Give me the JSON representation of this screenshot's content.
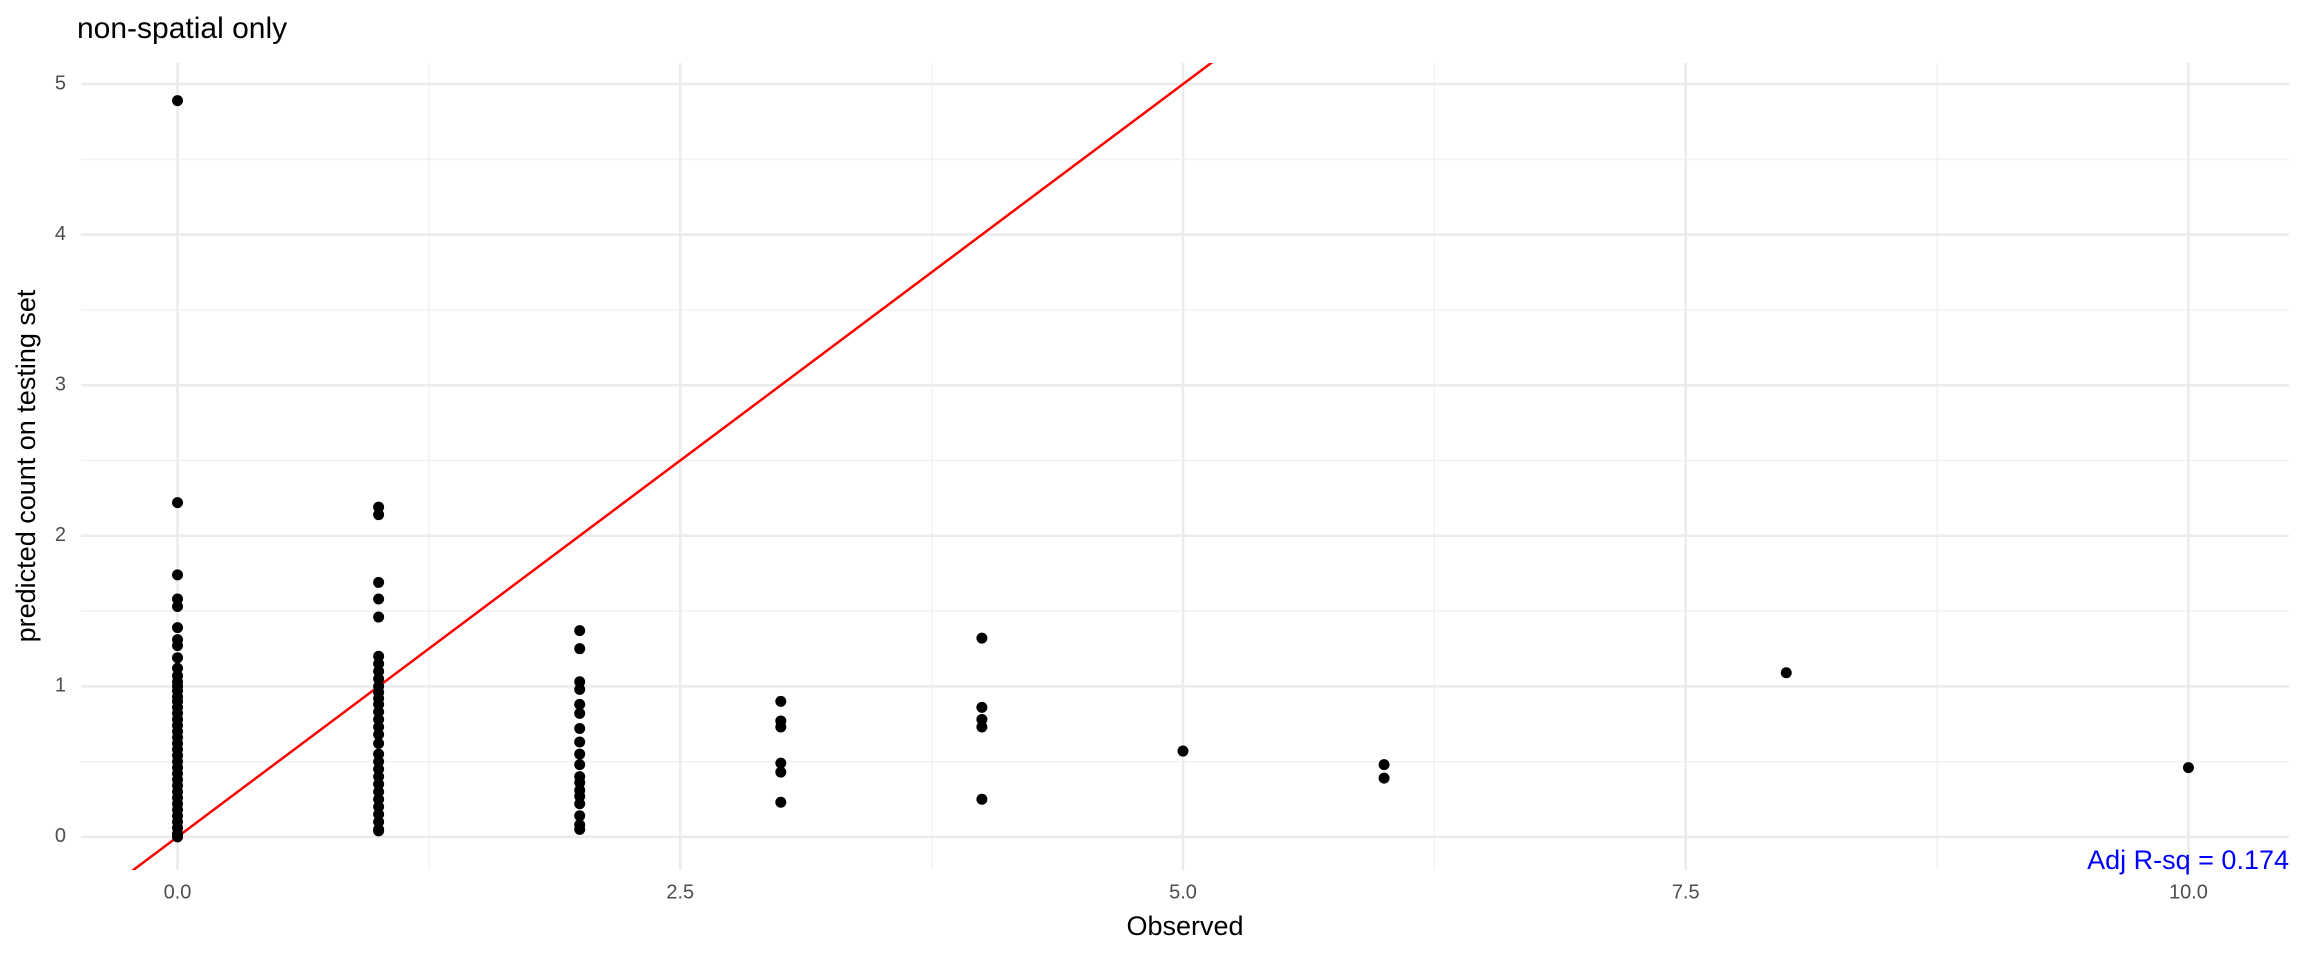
{
  "chart_data": {
    "type": "scatter",
    "title": "non-spatial only",
    "x_label": "Observed",
    "y_label": "predicted count on testing set",
    "annotation": "Adj R-sq = 0.174",
    "annotation_color": "#0000ff",
    "color": "#000000",
    "identity_line": true,
    "identity_line_color": "#ff0000",
    "grid": true,
    "xlim": [
      -0.48,
      10.5
    ],
    "ylim": [
      -0.22,
      5.14
    ],
    "xticks": [
      {
        "value": 0,
        "label": "0.0"
      },
      {
        "value": 2.5,
        "label": "2.5"
      },
      {
        "value": 5,
        "label": "5.0"
      },
      {
        "value": 7.5,
        "label": "7.5"
      },
      {
        "value": 10,
        "label": "10.0"
      }
    ],
    "yticks": [
      0,
      1,
      2,
      3,
      4,
      5
    ],
    "x": [
      0,
      0,
      0,
      0,
      0,
      0,
      0,
      0,
      0,
      0,
      0,
      0,
      0,
      0,
      0,
      0,
      0,
      0,
      0,
      0,
      0,
      0,
      0,
      0,
      0,
      0,
      0,
      0,
      0,
      0,
      0,
      0,
      0,
      0,
      0,
      0,
      0,
      0,
      0,
      1,
      1,
      1,
      1,
      1,
      1,
      1,
      1,
      1,
      1,
      1,
      1,
      1,
      1,
      1,
      1,
      1,
      1,
      1,
      1,
      1,
      1,
      1,
      1,
      1,
      1,
      1,
      1,
      1,
      1,
      2,
      2,
      2,
      2,
      2,
      2,
      2,
      2,
      2,
      2,
      2,
      2,
      2,
      2,
      2,
      2,
      2,
      2,
      3,
      3,
      3,
      3,
      3,
      3,
      4,
      4,
      4,
      4,
      4,
      5,
      6,
      6,
      8,
      10
    ],
    "y": [
      4.89,
      2.22,
      1.74,
      1.58,
      1.53,
      1.39,
      1.31,
      1.27,
      1.19,
      1.12,
      1.07,
      1.03,
      1.0,
      0.97,
      0.93,
      0.9,
      0.86,
      0.82,
      0.78,
      0.74,
      0.7,
      0.66,
      0.62,
      0.58,
      0.54,
      0.5,
      0.46,
      0.42,
      0.38,
      0.34,
      0.3,
      0.26,
      0.22,
      0.18,
      0.14,
      0.1,
      0.06,
      0.02,
      0.0,
      2.19,
      2.14,
      1.69,
      1.58,
      1.46,
      1.2,
      1.15,
      1.1,
      1.05,
      1.0,
      0.96,
      0.92,
      0.88,
      0.83,
      0.78,
      0.73,
      0.68,
      0.62,
      0.55,
      0.5,
      0.45,
      0.4,
      0.35,
      0.3,
      0.25,
      0.2,
      0.15,
      0.1,
      0.05,
      0.04,
      1.37,
      1.25,
      1.03,
      0.98,
      0.88,
      0.82,
      0.72,
      0.63,
      0.55,
      0.48,
      0.4,
      0.36,
      0.31,
      0.27,
      0.22,
      0.14,
      0.08,
      0.05,
      0.9,
      0.77,
      0.73,
      0.49,
      0.43,
      0.23,
      1.32,
      0.86,
      0.78,
      0.73,
      0.25,
      0.57,
      0.48,
      0.39,
      1.09,
      0.46
    ]
  }
}
